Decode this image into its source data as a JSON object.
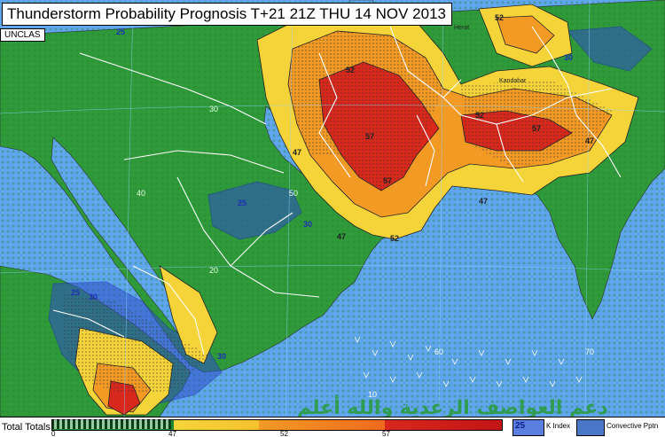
{
  "header": {
    "title": "Thunderstorm Probability Prognosis T+21 21Z THU 14 NOV 2013",
    "classification": "UNCLAS"
  },
  "legend": {
    "total_totals_label": "Total Totals",
    "ticks": [
      "0",
      "47",
      "52",
      "57"
    ],
    "k_index_value": "25",
    "k_index_label": "K Index",
    "convective_label": "Convective Pptn"
  },
  "watermark": "دعم العواصف الرعدية والله أعلم",
  "contour_labels": {
    "k25": "25",
    "k30": "30",
    "t47": "47",
    "t52": "52",
    "t57": "57"
  },
  "gridlines": {
    "lat_30": "30",
    "lat_20": "20",
    "lat_10": "10",
    "lon_40": "40",
    "lon_50": "50",
    "lon_60": "60",
    "lon_70": "70"
  },
  "cities": [
    "Herat",
    "Kandahar"
  ],
  "colors": {
    "land": "#2f9a3a",
    "sea": "#5fa6ee",
    "tt47": "#f5d43a",
    "tt52": "#f39a25",
    "tt57": "#d8281c",
    "kindex": "#2f4fc8"
  }
}
